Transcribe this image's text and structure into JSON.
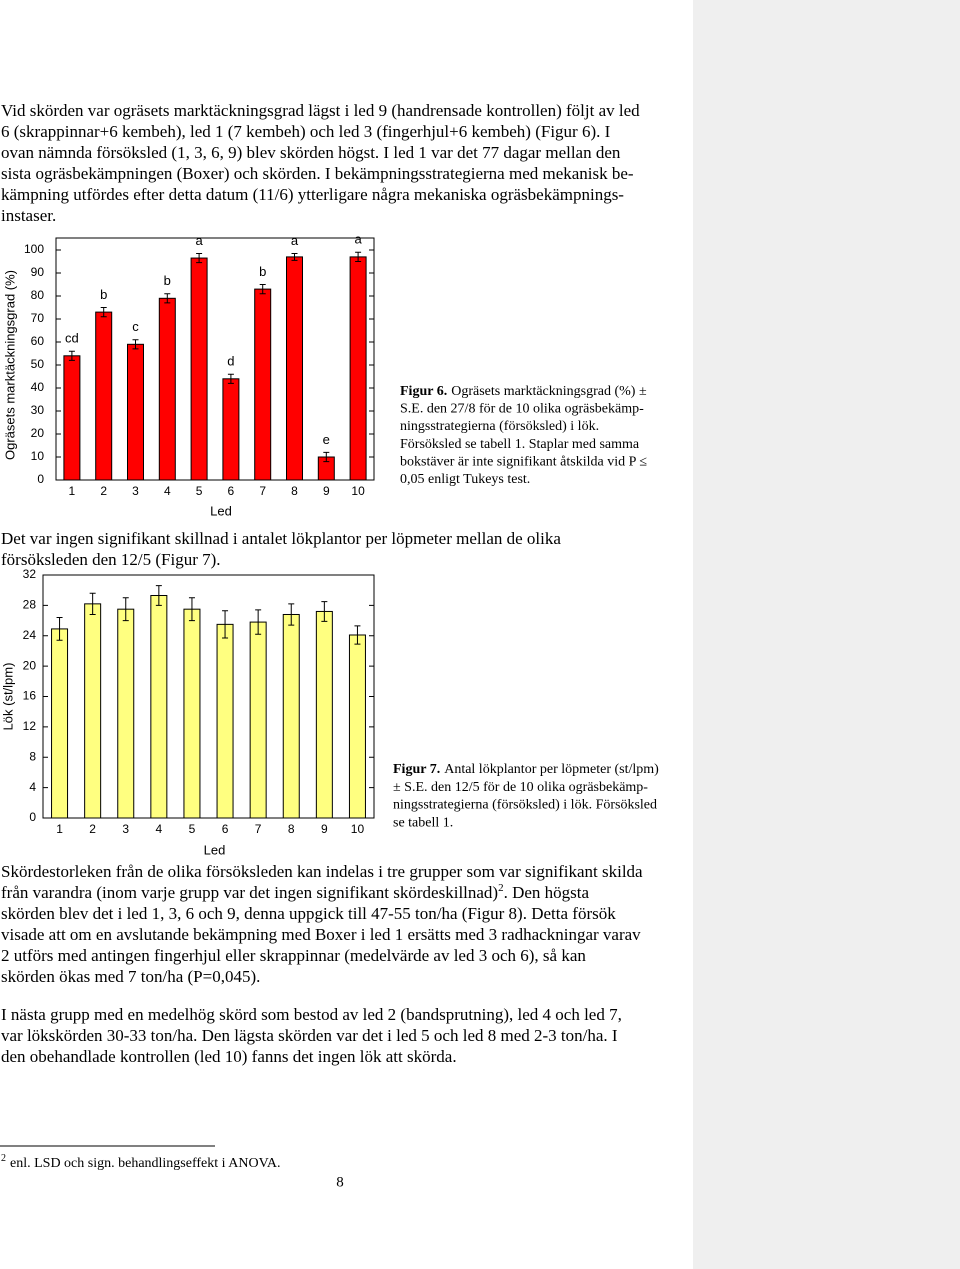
{
  "paragraphs": [
    {
      "lines": [
        "Vid skörden var ogräsets marktäckningsgrad lägst i led 9 (handrensade kontrollen) följt av led",
        "6 (skrappinnar+6 kembeh), led 1 (7 kembeh) och led 3 (fingerhjul+6 kembeh) (Figur 6). I",
        "ovan nämnda försöksled (1, 3, 6, 9) blev skörden högst. I led 1 var det 77 dagar mellan den",
        "sista ogräsbekämpningen (Boxer) och skörden. I bekämpningsstrategierna med mekanisk be-",
        "kämpning utfördes efter detta datum (11/6) ytterligare några mekaniska ogräsbekämpnings-",
        "instaser."
      ]
    },
    {
      "lines": [
        "Det var ingen signifikant skillnad i antalet lökplantor per löpmeter mellan de olika",
        "försöksleden den 12/5 (Figur 7)."
      ]
    },
    {
      "lines": [
        "Skördestorleken från de olika försöksleden kan indelas i tre grupper som var signifikant skilda",
        {
          "text": "från varandra (inom varje grupp var det ingen signifikant skördeskillnad)",
          "sup": "2",
          "tail": ". Den högsta"
        },
        "skörden blev det i led 1, 3, 6 och 9, denna uppgick till 47-55 ton/ha (Figur 8). Detta försök",
        "visade att om en avslutande bekämpning med Boxer i led 1 ersätts med 3 radhackningar varav",
        "2 utförs med antingen fingerhjul eller skrappinnar (medelvärde av led 3 och 6), så kan",
        "skörden ökas med 7 ton/ha (P=0,045)."
      ]
    },
    {
      "lines": [
        "I nästa grupp med en medelhög skörd som bestod av led 2 (bandsprutning), led 4 och led 7,",
        "var lökskörden 30-33 ton/ha. Den lägsta skörden var det i led 5 och led 8 med 2-3 ton/ha. I",
        "den obehandlade kontrollen (led 10) fanns det ingen lök att skörda."
      ]
    }
  ],
  "captions": [
    {
      "label": "Figur 6.",
      "lines": [
        "Ogräsets marktäckningsgrad (%) ±",
        "S.E. den 27/8 för de 10 olika ogräsbekämp-",
        "ningsstrategierna (försöksled) i lök.",
        "Försöksled se tabell 1. Staplar med samma",
        "bokstäver är inte signifikant åtskilda vid P ≤",
        "0,05 enligt Tukeys test."
      ]
    },
    {
      "label": "Figur 7.",
      "lines": [
        "Antal lökplantor per löpmeter (st/lpm)",
        "± S.E. den 12/5 för de 10 olika ogräsbekämp-",
        "ningsstrategierna (försöksled) i lök. Försöksled",
        "se tabell 1."
      ]
    }
  ],
  "footnote": {
    "mark": "2",
    "text": "enl. LSD och sign. behandlingseffekt i ANOVA."
  },
  "page_number": "8",
  "chart_data": [
    {
      "type": "bar",
      "y_label": "Ogräsets marktäckningsgrad (%)",
      "x_label": "Led",
      "categories": [
        "1",
        "2",
        "3",
        "4",
        "5",
        "6",
        "7",
        "8",
        "9",
        "10"
      ],
      "values": [
        54,
        73,
        59,
        79,
        96.5,
        44,
        83,
        97,
        10,
        97
      ],
      "errors": [
        2,
        2,
        2,
        2,
        2,
        2,
        2,
        1.5,
        2,
        2
      ],
      "annotations": [
        "cd",
        "b",
        "c",
        "b",
        "a",
        "d",
        "b",
        "a",
        "e",
        "a"
      ],
      "color": "#ff0000",
      "ylim": [
        0,
        100
      ],
      "yticks": [
        0,
        10,
        20,
        30,
        40,
        50,
        60,
        70,
        80,
        90,
        100
      ]
    },
    {
      "type": "bar",
      "y_label": "Lök (st/lpm)",
      "x_label": "Led",
      "categories": [
        "1",
        "2",
        "3",
        "4",
        "5",
        "6",
        "7",
        "8",
        "9",
        "10"
      ],
      "values": [
        24.9,
        28.2,
        27.5,
        29.3,
        27.5,
        25.5,
        25.8,
        26.8,
        27.2,
        24.1
      ],
      "errors": [
        1.5,
        1.4,
        1.5,
        1.3,
        1.5,
        1.8,
        1.6,
        1.4,
        1.3,
        1.2
      ],
      "color": "#ffff80",
      "ylim": [
        0,
        32
      ],
      "yticks": [
        0,
        4,
        8,
        12,
        16,
        20,
        24,
        28,
        32
      ]
    }
  ]
}
